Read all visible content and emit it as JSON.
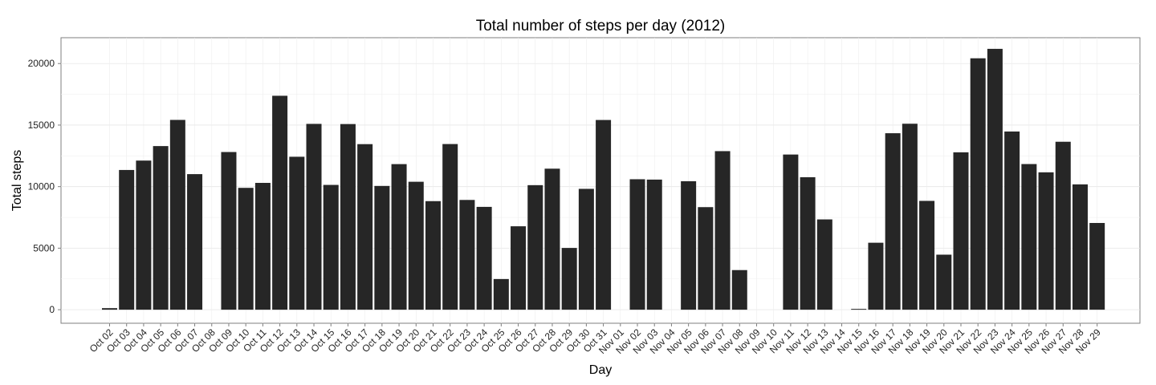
{
  "chart_data": {
    "type": "bar",
    "title": "Total number of steps per day (2012)",
    "xlabel": "Day",
    "ylabel": "Total steps",
    "ylim": [
      -1100,
      22100
    ],
    "yticks": [
      0,
      5000,
      10000,
      15000,
      20000
    ],
    "grid": true,
    "legend": "none",
    "bar_color": "#262626",
    "categories": [
      "Oct 02",
      "Oct 03",
      "Oct 04",
      "Oct 05",
      "Oct 06",
      "Oct 07",
      "Oct 08",
      "Oct 09",
      "Oct 10",
      "Oct 11",
      "Oct 12",
      "Oct 13",
      "Oct 14",
      "Oct 15",
      "Oct 16",
      "Oct 17",
      "Oct 18",
      "Oct 19",
      "Oct 20",
      "Oct 21",
      "Oct 22",
      "Oct 23",
      "Oct 24",
      "Oct 25",
      "Oct 26",
      "Oct 27",
      "Oct 28",
      "Oct 29",
      "Oct 30",
      "Oct 31",
      "Nov 01",
      "Nov 02",
      "Nov 03",
      "Nov 04",
      "Nov 05",
      "Nov 06",
      "Nov 07",
      "Nov 08",
      "Nov 09",
      "Nov 10",
      "Nov 11",
      "Nov 12",
      "Nov 13",
      "Nov 14",
      "Nov 15",
      "Nov 16",
      "Nov 17",
      "Nov 18",
      "Nov 19",
      "Nov 20",
      "Nov 21",
      "Nov 22",
      "Nov 23",
      "Nov 24",
      "Nov 25",
      "Nov 26",
      "Nov 27",
      "Nov 28",
      "Nov 29"
    ],
    "values": [
      126,
      11352,
      12116,
      13294,
      15420,
      11015,
      0,
      12811,
      9900,
      10304,
      17382,
      12426,
      15098,
      10139,
      15084,
      13452,
      10056,
      11829,
      10395,
      8821,
      13460,
      8918,
      8355,
      2492,
      6778,
      10119,
      11458,
      5018,
      9819,
      15414,
      0,
      10600,
      10571,
      0,
      10439,
      8334,
      12883,
      3219,
      0,
      0,
      12608,
      10765,
      7336,
      0,
      41,
      5441,
      14339,
      15110,
      8841,
      4472,
      12787,
      20427,
      21194,
      14478,
      11834,
      11162,
      13646,
      10183,
      7047
    ]
  }
}
